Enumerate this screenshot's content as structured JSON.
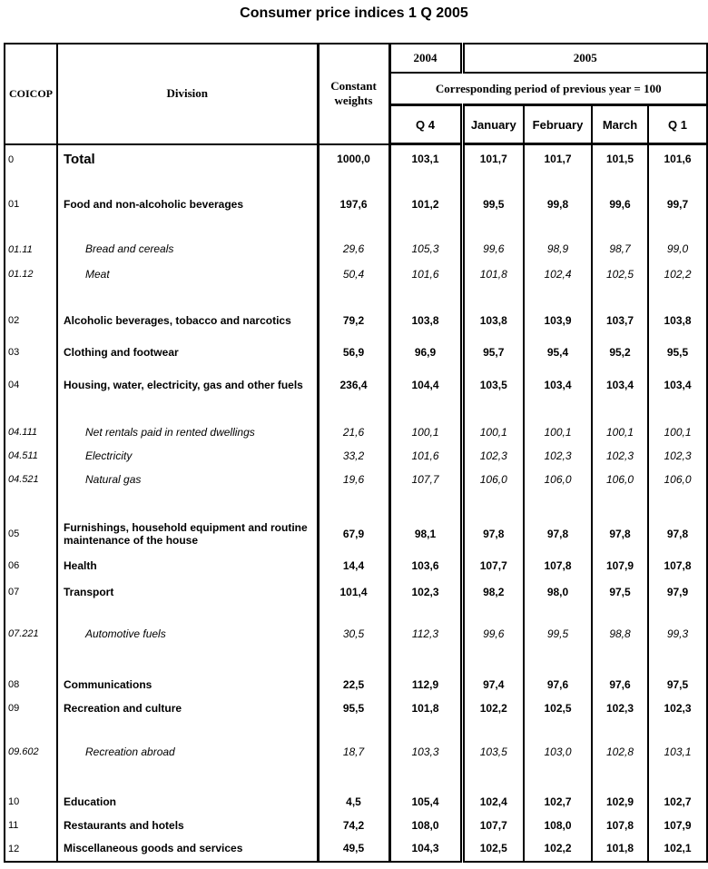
{
  "title": "Consumer price indices 1 Q 2005",
  "colors": {
    "text": "#000000",
    "background": "#ffffff",
    "border": "#000000"
  },
  "header": {
    "coicop": "COICOP",
    "division": "Division",
    "weights": "Constant weights",
    "year_2004": "2004",
    "year_2005": "2005",
    "note": "Corresponding period of previous year = 100",
    "periods": [
      "Q 4",
      "January",
      "February",
      "March",
      "Q 1"
    ]
  },
  "rows": [
    {
      "style": "total",
      "height": 34,
      "code": "0",
      "division": "Total",
      "weights": "1000,0",
      "q4": "103,1",
      "jan": "101,7",
      "feb": "101,7",
      "mar": "101,5",
      "q1": "101,6"
    },
    {
      "style": "spacer",
      "height": 16
    },
    {
      "style": "bold",
      "height": 34,
      "code": "01",
      "division": "Food and non-alcoholic beverages",
      "weights": "197,6",
      "q4": "101,2",
      "jan": "99,5",
      "feb": "99,8",
      "mar": "99,6",
      "q1": "99,7"
    },
    {
      "style": "spacer",
      "height": 18
    },
    {
      "style": "italic",
      "height": 29,
      "code": "01.11",
      "division": "Bread and cereals",
      "weights": "29,6",
      "q4": "105,3",
      "jan": "99,6",
      "feb": "98,9",
      "mar": "98,7",
      "q1": "99,0"
    },
    {
      "style": "italic",
      "height": 26,
      "code": "01.12",
      "division": "Meat",
      "weights": "50,4",
      "q4": "101,6",
      "jan": "101,8",
      "feb": "102,4",
      "mar": "102,5",
      "q1": "102,2"
    },
    {
      "style": "spacer",
      "height": 18
    },
    {
      "style": "bold",
      "height": 40,
      "code": "02",
      "division": "Alcoholic beverages, tobacco and narcotics",
      "weights": "79,2",
      "q4": "103,8",
      "jan": "103,8",
      "feb": "103,9",
      "mar": "103,7",
      "q1": "103,8"
    },
    {
      "style": "bold",
      "height": 30,
      "code": "03",
      "division": "Clothing and footwear",
      "weights": "56,9",
      "q4": "96,9",
      "jan": "95,7",
      "feb": "95,4",
      "mar": "95,2",
      "q1": "95,5"
    },
    {
      "style": "bold",
      "height": 42,
      "code": "04",
      "division": "Housing, water, electricity, gas and other fuels",
      "weights": "236,4",
      "q4": "104,4",
      "jan": "103,5",
      "feb": "103,4",
      "mar": "103,4",
      "q1": "103,4"
    },
    {
      "style": "spacer",
      "height": 18
    },
    {
      "style": "italic",
      "height": 26,
      "code": "04.111",
      "division": "Net rentals paid in rented dwellings",
      "weights": "21,6",
      "q4": "100,1",
      "jan": "100,1",
      "feb": "100,1",
      "mar": "100,1",
      "q1": "100,1"
    },
    {
      "style": "italic",
      "height": 26,
      "code": "04.511",
      "division": "Electricity",
      "weights": "33,2",
      "q4": "101,6",
      "jan": "102,3",
      "feb": "102,3",
      "mar": "102,3",
      "q1": "102,3"
    },
    {
      "style": "italic",
      "height": 26,
      "code": "04.521",
      "division": "Natural gas",
      "weights": "19,6",
      "q4": "107,7",
      "jan": "106,0",
      "feb": "106,0",
      "mar": "106,0",
      "q1": "106,0"
    },
    {
      "style": "spacer",
      "height": 27
    },
    {
      "style": "bold",
      "height": 40,
      "code": "05",
      "division": "Furnishings, household equipment and routine maintenance of the house",
      "weights": "67,9",
      "q4": "98,1",
      "jan": "97,8",
      "feb": "97,8",
      "mar": "97,8",
      "q1": "97,8"
    },
    {
      "style": "bold",
      "height": 30,
      "code": "06",
      "division": "Health",
      "weights": "14,4",
      "q4": "103,6",
      "jan": "107,7",
      "feb": "107,8",
      "mar": "107,9",
      "q1": "107,8"
    },
    {
      "style": "bold",
      "height": 28,
      "code": "07",
      "division": "Transport",
      "weights": "101,4",
      "q4": "102,3",
      "jan": "98,2",
      "feb": "98,0",
      "mar": "97,5",
      "q1": "97,9"
    },
    {
      "style": "spacer",
      "height": 17
    },
    {
      "style": "italic",
      "height": 30,
      "code": "07.221",
      "division": "Automotive fuels",
      "weights": "30,5",
      "q4": "112,3",
      "jan": "99,6",
      "feb": "99,5",
      "mar": "98,8",
      "q1": "99,3"
    },
    {
      "style": "spacer",
      "height": 28
    },
    {
      "style": "bold",
      "height": 26,
      "code": "08",
      "division": "Communications",
      "weights": "22,5",
      "q4": "112,9",
      "jan": "97,4",
      "feb": "97,6",
      "mar": "97,6",
      "q1": "97,5"
    },
    {
      "style": "bold",
      "height": 26,
      "code": "09",
      "division": "Recreation and culture",
      "weights": "95,5",
      "q4": "101,8",
      "jan": "102,2",
      "feb": "102,5",
      "mar": "102,3",
      "q1": "102,3"
    },
    {
      "style": "spacer",
      "height": 20
    },
    {
      "style": "italic",
      "height": 30,
      "code": "09.602",
      "division": "Recreation abroad",
      "weights": "18,7",
      "q4": "103,3",
      "jan": "103,5",
      "feb": "103,0",
      "mar": "102,8",
      "q1": "103,1"
    },
    {
      "style": "spacer",
      "height": 27
    },
    {
      "style": "bold",
      "height": 26,
      "code": "10",
      "division": "Education",
      "weights": "4,5",
      "q4": "105,4",
      "jan": "102,4",
      "feb": "102,7",
      "mar": "102,9",
      "q1": "102,7"
    },
    {
      "style": "bold",
      "height": 26,
      "code": "11",
      "division": "Restaurants and hotels",
      "weights": "74,2",
      "q4": "108,0",
      "jan": "107,7",
      "feb": "108,0",
      "mar": "107,8",
      "q1": "107,9"
    },
    {
      "style": "bold",
      "height": 26,
      "code": "12",
      "division": "Miscellaneous goods and services",
      "weights": "49,5",
      "q4": "104,3",
      "jan": "102,5",
      "feb": "102,2",
      "mar": "101,8",
      "q1": "102,1"
    }
  ]
}
